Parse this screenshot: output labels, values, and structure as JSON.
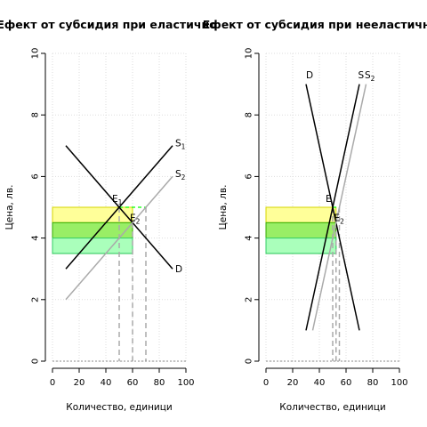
{
  "chart_data": [
    {
      "type": "line",
      "title": "Ефект от субсидия при еластично",
      "xlabel": "Количество, единици",
      "ylabel": "Цена, лв.",
      "xlim": [
        0,
        100
      ],
      "ylim": [
        0,
        10
      ],
      "xticks": [
        "0",
        "20",
        "40",
        "60",
        "80",
        "100"
      ],
      "yticks": [
        "0",
        "2",
        "4",
        "6",
        "8",
        "10"
      ],
      "grid": true,
      "series": [
        {
          "name": "D",
          "color": "#000000",
          "x": [
            10,
            90
          ],
          "y": [
            7,
            3
          ]
        },
        {
          "name": "S1",
          "color": "#000000",
          "x": [
            10,
            90
          ],
          "y": [
            3,
            7
          ]
        },
        {
          "name": "S2",
          "color": "#aaaaaa",
          "x": [
            10,
            90
          ],
          "y": [
            2,
            6
          ]
        }
      ],
      "curve_labels": [
        {
          "text": "S",
          "sub": "1",
          "x": 92,
          "y": 7.1
        },
        {
          "text": "S",
          "sub": "2",
          "x": 92,
          "y": 6.1
        },
        {
          "text": "D",
          "sub": "",
          "x": 92,
          "y": 3.0
        }
      ],
      "points": [
        {
          "label": "E",
          "sub": "1",
          "x": 50,
          "y": 5.0
        },
        {
          "label": "E",
          "sub": "2",
          "x": 60,
          "y": 4.5
        }
      ],
      "regions": [
        {
          "color": "#ffff99",
          "x": [
            0,
            60
          ],
          "y": [
            4.5,
            5.0
          ],
          "border": "#d4d400"
        },
        {
          "color": "#99ee66",
          "x": [
            0,
            60
          ],
          "y": [
            3.5,
            4.5
          ],
          "border": "#33aa00"
        },
        {
          "color": "#aaffbb",
          "x": [
            0,
            60
          ],
          "y": [
            3.5,
            4.0
          ],
          "border": "#33cc66"
        }
      ],
      "price_line": {
        "y": 5.0,
        "x": [
          50,
          70
        ],
        "color": "#00ff00"
      },
      "dashed_verticals": [
        50,
        60,
        70
      ]
    },
    {
      "type": "line",
      "title": "Ефект от субсидия при нееластично",
      "xlabel": "Количество, единици",
      "ylabel": "Цена, лв.",
      "xlim": [
        0,
        100
      ],
      "ylim": [
        0,
        10
      ],
      "xticks": [
        "0",
        "20",
        "40",
        "60",
        "80",
        "100"
      ],
      "yticks": [
        "0",
        "2",
        "4",
        "6",
        "8",
        "10"
      ],
      "grid": true,
      "series": [
        {
          "name": "D",
          "color": "#000000",
          "x": [
            30,
            70
          ],
          "y": [
            9,
            1
          ]
        },
        {
          "name": "S1",
          "color": "#000000",
          "x": [
            30,
            70
          ],
          "y": [
            1,
            9
          ]
        },
        {
          "name": "S2",
          "color": "#aaaaaa",
          "x": [
            35,
            75
          ],
          "y": [
            1,
            9
          ]
        }
      ],
      "curve_labels": [
        {
          "text": "D",
          "sub": "",
          "x": 30,
          "y": 9.3
        },
        {
          "text": "S",
          "sub": "",
          "x": 69,
          "y": 9.3
        },
        {
          "text": "S",
          "sub": "2",
          "x": 74,
          "y": 9.3
        }
      ],
      "points": [
        {
          "label": "E",
          "sub": "",
          "x": 50,
          "y": 5.0
        },
        {
          "label": "E",
          "sub": "2",
          "x": 53,
          "y": 4.5
        }
      ],
      "regions": [
        {
          "color": "#ffff99",
          "x": [
            0,
            52.5
          ],
          "y": [
            4.5,
            5.0
          ],
          "border": "#d4d400"
        },
        {
          "color": "#99ee66",
          "x": [
            0,
            52.5
          ],
          "y": [
            3.5,
            4.5
          ],
          "border": "#33aa00"
        },
        {
          "color": "#aaffbb",
          "x": [
            0,
            52.5
          ],
          "y": [
            3.5,
            4.0
          ],
          "border": "#33cc66"
        }
      ],
      "price_line": {
        "y": 5.0,
        "x": [
          50,
          55
        ],
        "color": "#00ff00"
      },
      "dashed_verticals": [
        50,
        52.5,
        55
      ]
    }
  ]
}
